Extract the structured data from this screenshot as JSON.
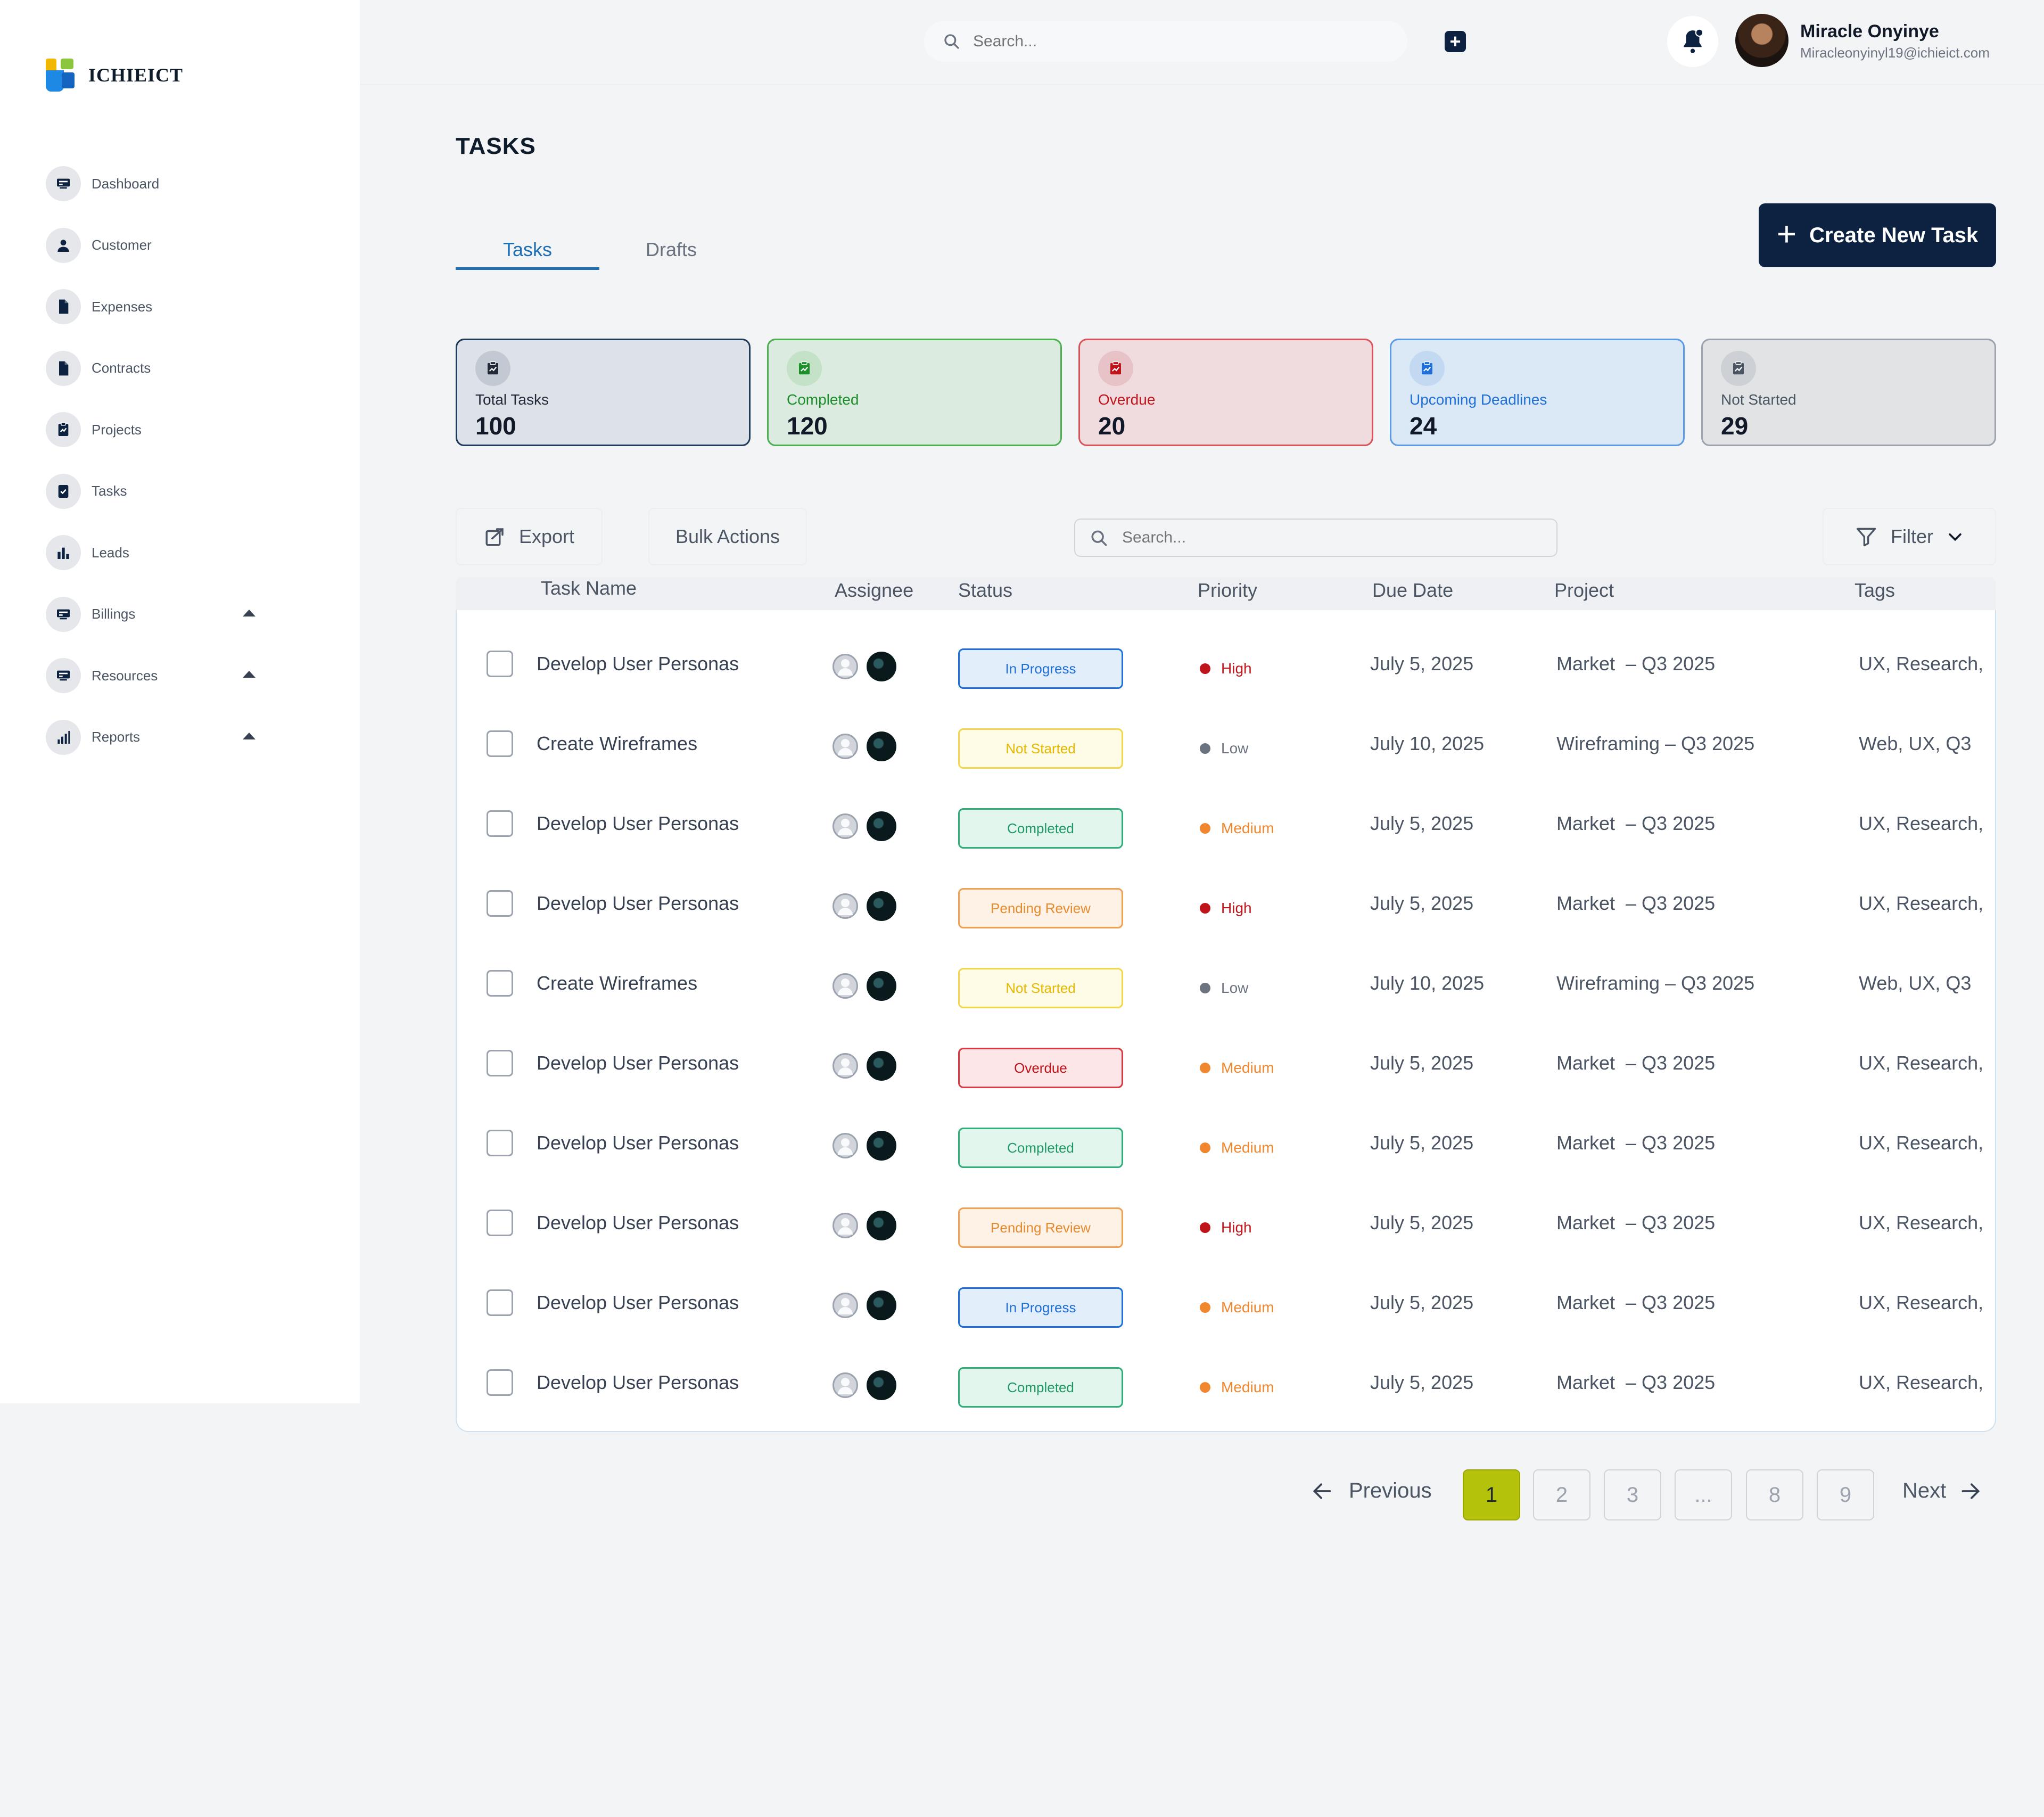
{
  "brand": {
    "name": "ICHIEICT"
  },
  "sidebar": {
    "items": [
      {
        "label": "Dashboard",
        "icon": "dashboard-icon",
        "caret": false
      },
      {
        "label": "Customer",
        "icon": "person-icon",
        "caret": false
      },
      {
        "label": "Expenses",
        "icon": "document-icon",
        "caret": false
      },
      {
        "label": "Contracts",
        "icon": "document-icon",
        "caret": false
      },
      {
        "label": "Projects",
        "icon": "clipboard-icon",
        "caret": false
      },
      {
        "label": "Tasks",
        "icon": "task-icon",
        "caret": false
      },
      {
        "label": "Leads",
        "icon": "bar-chart-icon",
        "caret": false
      },
      {
        "label": "Billings",
        "icon": "billing-icon",
        "caret": true
      },
      {
        "label": "Resources",
        "icon": "resources-icon",
        "caret": true
      },
      {
        "label": "Reports",
        "icon": "report-chart-icon",
        "caret": true
      }
    ]
  },
  "header": {
    "search_placeholder": "Search...",
    "user": {
      "name": "Miracle Onyinye",
      "email": "Miracleonyinyl19@ichieict.com"
    }
  },
  "page": {
    "title": "TASKS",
    "tabs": [
      {
        "label": "Tasks",
        "active": true
      },
      {
        "label": "Drafts",
        "active": false
      }
    ],
    "create_button": "Create New Task"
  },
  "stats": [
    {
      "label": "Total Tasks",
      "value": "100",
      "color": "#1f2937"
    },
    {
      "label": "Completed",
      "value": "120",
      "color": "#1a8f2a"
    },
    {
      "label": "Overdue",
      "value": "20",
      "color": "#c0141b"
    },
    {
      "label": "Upcoming Deadlines",
      "value": "24",
      "color": "#1e6fd9"
    },
    {
      "label": "Not Started",
      "value": "29",
      "color": "#4b5563"
    }
  ],
  "toolbar": {
    "export_label": "Export",
    "bulk_label": "Bulk Actions",
    "search_placeholder": "Search...",
    "filter_label": "Filter"
  },
  "table": {
    "columns": [
      "Task Name",
      "Assignee",
      "Status",
      "Priority",
      "Due Date",
      "Project",
      "Tags"
    ],
    "rows": [
      {
        "task": "Develop User Personas",
        "status": "In Progress",
        "priority": "High",
        "due": "July 5, 2025",
        "project": "Market  – Q3 2025",
        "tags": "UX, Research,"
      },
      {
        "task": "Create Wireframes",
        "status": "Not Started",
        "priority": "Low",
        "due": "July 10, 2025",
        "project": "Wireframing – Q3 2025",
        "tags": "Web, UX, Q3"
      },
      {
        "task": "Develop User Personas",
        "status": "Completed",
        "priority": "Medium",
        "due": "July 5, 2025",
        "project": "Market  – Q3 2025",
        "tags": "UX, Research,"
      },
      {
        "task": "Develop User Personas",
        "status": "Pending Review",
        "priority": "High",
        "due": "July 5, 2025",
        "project": "Market  – Q3 2025",
        "tags": "UX, Research,"
      },
      {
        "task": "Create Wireframes",
        "status": "Not Started",
        "priority": "Low",
        "due": "July 10, 2025",
        "project": "Wireframing – Q3 2025",
        "tags": "Web, UX, Q3"
      },
      {
        "task": "Develop User Personas",
        "status": "Overdue",
        "priority": "Medium",
        "due": "July 5, 2025",
        "project": "Market  – Q3 2025",
        "tags": "UX, Research,"
      },
      {
        "task": "Develop User Personas",
        "status": "Completed",
        "priority": "Medium",
        "due": "July 5, 2025",
        "project": "Market  – Q3 2025",
        "tags": "UX, Research,"
      },
      {
        "task": "Develop User Personas",
        "status": "Pending Review",
        "priority": "High",
        "due": "July 5, 2025",
        "project": "Market  – Q3 2025",
        "tags": "UX, Research,"
      },
      {
        "task": "Develop User Personas",
        "status": "In Progress",
        "priority": "Medium",
        "due": "July 5, 2025",
        "project": "Market  – Q3 2025",
        "tags": "UX, Research,"
      },
      {
        "task": "Develop User Personas",
        "status": "Completed",
        "priority": "Medium",
        "due": "July 5, 2025",
        "project": "Market  – Q3 2025",
        "tags": "UX, Research,"
      }
    ]
  },
  "status_styles": {
    "In Progress": {
      "bg": "#e3eefb",
      "border": "#1e6fd9",
      "text": "#1e6fd9"
    },
    "Not Started": {
      "bg": "#fefbe6",
      "border": "#f2d64b",
      "text": "#e6b800"
    },
    "Completed": {
      "bg": "#e3f6ee",
      "border": "#2fae7a",
      "text": "#1f9a66"
    },
    "Pending Review": {
      "bg": "#fef1e6",
      "border": "#f0a050",
      "text": "#e68a2e"
    },
    "Overdue": {
      "bg": "#fde6e8",
      "border": "#d83a44",
      "text": "#c0141b"
    }
  },
  "priority_styles": {
    "High": {
      "dot": "#c0141b",
      "text": "#c0141b"
    },
    "Low": {
      "dot": "#6b7280",
      "text": "#6b7280"
    },
    "Medium": {
      "dot": "#f0862e",
      "text": "#f0862e"
    }
  },
  "pagination": {
    "previous_label": "Previous",
    "next_label": "Next",
    "pages": [
      "1",
      "2",
      "3",
      "...",
      "8",
      "9"
    ],
    "current": "1"
  }
}
